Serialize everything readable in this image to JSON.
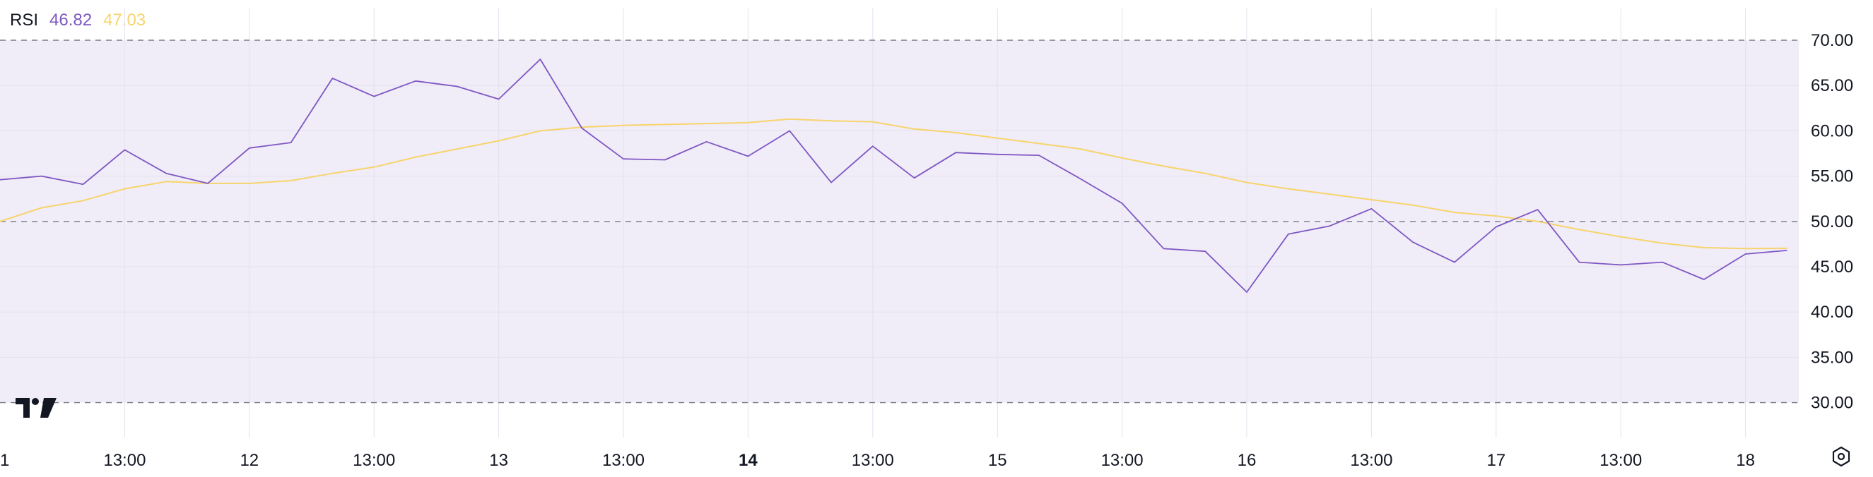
{
  "legend": {
    "indicator": "RSI",
    "rsi_value": "46.82",
    "ma_value": "47.03"
  },
  "colors": {
    "rsi": "#7e57c2",
    "ma": "#f7d46b",
    "band": "#f0ecf8",
    "grid": "#e4e1ec",
    "dash": "#787b86"
  },
  "icons": {
    "logo": "tradingview-logo-icon",
    "settings": "settings-gear-icon"
  },
  "chart_data": {
    "type": "line",
    "ylim": [
      25.5,
      73.7
    ],
    "y_ticks": [
      "70.00",
      "65.00",
      "60.00",
      "55.00",
      "50.00",
      "45.00",
      "40.00",
      "35.00",
      "30.00"
    ],
    "bands": {
      "upper": 70,
      "middle": 50,
      "lower": 30
    },
    "x_ticks": [
      {
        "label": "1",
        "i": -2.86,
        "bold": false
      },
      {
        "label": "13:00",
        "i": 3,
        "bold": false
      },
      {
        "label": "12",
        "i": 6,
        "bold": false
      },
      {
        "label": "13:00",
        "i": 9,
        "bold": false
      },
      {
        "label": "13",
        "i": 12,
        "bold": false
      },
      {
        "label": "13:00",
        "i": 15,
        "bold": false
      },
      {
        "label": "14",
        "i": 18,
        "bold": true
      },
      {
        "label": "13:00",
        "i": 21,
        "bold": false
      },
      {
        "label": "15",
        "i": 24,
        "bold": false
      },
      {
        "label": "13:00",
        "i": 27,
        "bold": false
      },
      {
        "label": "16",
        "i": 30,
        "bold": false
      },
      {
        "label": "13:00",
        "i": 33,
        "bold": false
      },
      {
        "label": "17",
        "i": 36,
        "bold": false
      },
      {
        "label": "13:00",
        "i": 39,
        "bold": false
      },
      {
        "label": "18",
        "i": 42,
        "bold": false
      }
    ],
    "series": [
      {
        "values": [
          54.6,
          55.0,
          54.1,
          57.9,
          55.3,
          54.2,
          58.1,
          58.7,
          65.8,
          63.8,
          65.5,
          64.9,
          63.5,
          67.9,
          60.3,
          56.9,
          56.8,
          58.8,
          57.2,
          60.0,
          54.3,
          58.3,
          54.8,
          57.6,
          57.4,
          57.3,
          54.7,
          52.0,
          47.0,
          46.7,
          42.2,
          48.6,
          49.5,
          51.4,
          47.7,
          45.5,
          49.4,
          51.3,
          45.5,
          45.2,
          45.5,
          43.6,
          46.4,
          46.8
        ]
      },
      {
        "values": [
          50.0,
          51.5,
          52.3,
          53.6,
          54.4,
          54.2,
          54.2,
          54.5,
          55.3,
          56.0,
          57.1,
          58.0,
          58.9,
          60.0,
          60.4,
          60.6,
          60.7,
          60.8,
          60.9,
          61.3,
          61.1,
          61.0,
          60.2,
          59.8,
          59.2,
          58.6,
          58.0,
          57.0,
          56.1,
          55.3,
          54.3,
          53.6,
          53.0,
          52.4,
          51.8,
          51.0,
          50.6,
          50.0,
          49.1,
          48.3,
          47.6,
          47.1,
          47.0,
          47.03
        ]
      }
    ]
  }
}
